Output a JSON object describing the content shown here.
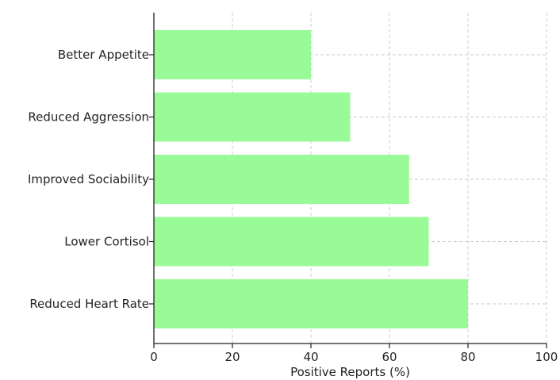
{
  "chart_data": {
    "type": "bar",
    "orientation": "horizontal",
    "title": "",
    "xlabel": "Positive Reports (%)",
    "ylabel": "",
    "categories": [
      "Reduced Heart Rate",
      "Lower Cortisol",
      "Improved Sociability",
      "Reduced Aggression",
      "Better Appetite"
    ],
    "values": [
      80,
      70,
      65,
      50,
      40
    ],
    "xlim": [
      0,
      100
    ],
    "xticks": [
      "0",
      "20",
      "40",
      "60",
      "80",
      "100"
    ],
    "grid": true,
    "bar_color": "#98fb98"
  }
}
